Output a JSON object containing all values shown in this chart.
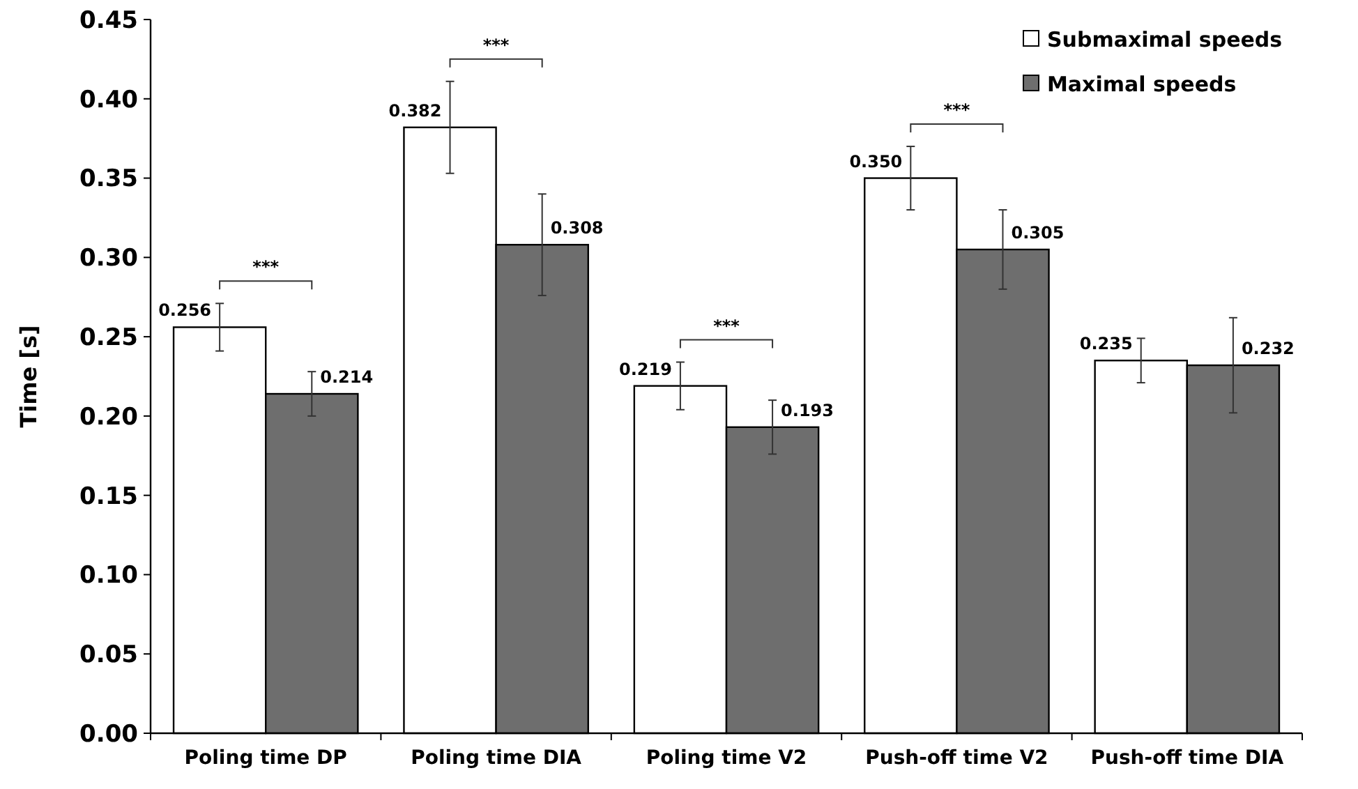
{
  "chart_data": {
    "type": "bar",
    "ylabel": "Time [s]",
    "categories": [
      "Poling time DP",
      "Poling time DIA",
      "Poling time V2",
      "Push-off time V2",
      "Push-off time DIA"
    ],
    "series": [
      {
        "name": "Submaximal speeds",
        "color": "#ffffff",
        "values": [
          0.256,
          0.382,
          0.219,
          0.35,
          0.235
        ],
        "value_labels": [
          "0.256",
          "0.382",
          "0.219",
          "0.350",
          "0.235"
        ],
        "errors": [
          0.015,
          0.029,
          0.015,
          0.02,
          0.014
        ]
      },
      {
        "name": "Maximal speeds",
        "color": "#6e6e6e",
        "values": [
          0.214,
          0.308,
          0.193,
          0.305,
          0.232
        ],
        "value_labels": [
          "0.214",
          "0.308",
          "0.193",
          "0.305",
          "0.232"
        ],
        "errors": [
          0.014,
          0.032,
          0.017,
          0.025,
          0.03
        ]
      }
    ],
    "ylim": [
      0,
      0.45
    ],
    "yticks": [
      {
        "value": 0,
        "label": "0.00"
      },
      {
        "value": 0.05,
        "label": "0.05"
      },
      {
        "value": 0.1,
        "label": "0.10"
      },
      {
        "value": 0.15,
        "label": "0.15"
      },
      {
        "value": 0.2,
        "label": "0.20"
      },
      {
        "value": 0.25,
        "label": "0.25"
      },
      {
        "value": 0.3,
        "label": "0.30"
      },
      {
        "value": 0.35,
        "label": "0.35"
      },
      {
        "value": 0.4,
        "label": "0.40"
      },
      {
        "value": 0.45,
        "label": "0.45"
      }
    ],
    "grid": false,
    "legend": "top right",
    "annotations": [
      "***",
      "***",
      "***",
      "***"
    ]
  }
}
